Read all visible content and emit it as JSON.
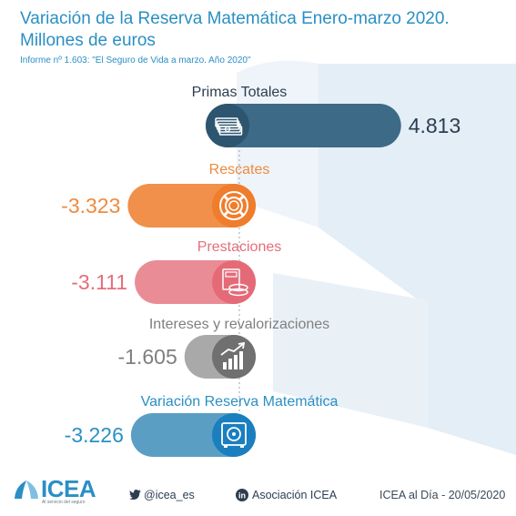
{
  "header": {
    "title_line1": "Variación de la Reserva Matemática Enero-marzo 2020.",
    "title_line2": "Millones de euros",
    "subtitle": "Informe nº 1.603: \"El Seguro de Vida a marzo. Año 2020\""
  },
  "chart_data": {
    "type": "bar",
    "categories": [
      "Primas Totales",
      "Rescates",
      "Prestaciones",
      "Intereses y revalorizaciones",
      "Variación Reserva Matemática"
    ],
    "values": [
      4813,
      -3323,
      -3111,
      -1605,
      -3226
    ],
    "value_labels": [
      "4.813",
      "-3.323",
      "-3.111",
      "-1.605",
      "-3.226"
    ],
    "icons": [
      "banknotes-icon",
      "lifebuoy-icon",
      "coins-calculator-icon",
      "growth-chart-icon",
      "safe-icon"
    ],
    "colors": [
      "#3d6a87",
      "#f0904a",
      "#ea8c96",
      "#a9a9a9",
      "#5b9ec4"
    ],
    "label_colors": [
      "#2d3e50",
      "#ef8a3f",
      "#e56e7c",
      "#7f7f7f",
      "#2a8fc4"
    ],
    "icon_bg_colors": [
      "#2d5570",
      "#ef7d2b",
      "#e56a78",
      "#707070",
      "#1a7fbf"
    ],
    "value_colors": [
      "#2d3e50",
      "#ef8a3f",
      "#e56e7c",
      "#7f7f7f",
      "#2a8fc4"
    ]
  },
  "footer": {
    "logo": "ICEA",
    "logo_tagline": "Al servicio del seguro",
    "twitter": "@icea_es",
    "linkedin": "Asociación ICEA",
    "date_note": "ICEA al Día - 20/05/2020"
  },
  "icons": {
    "twitter": "twitter-icon",
    "linkedin": "linkedin-icon",
    "logo": "icea-logo-icon"
  }
}
